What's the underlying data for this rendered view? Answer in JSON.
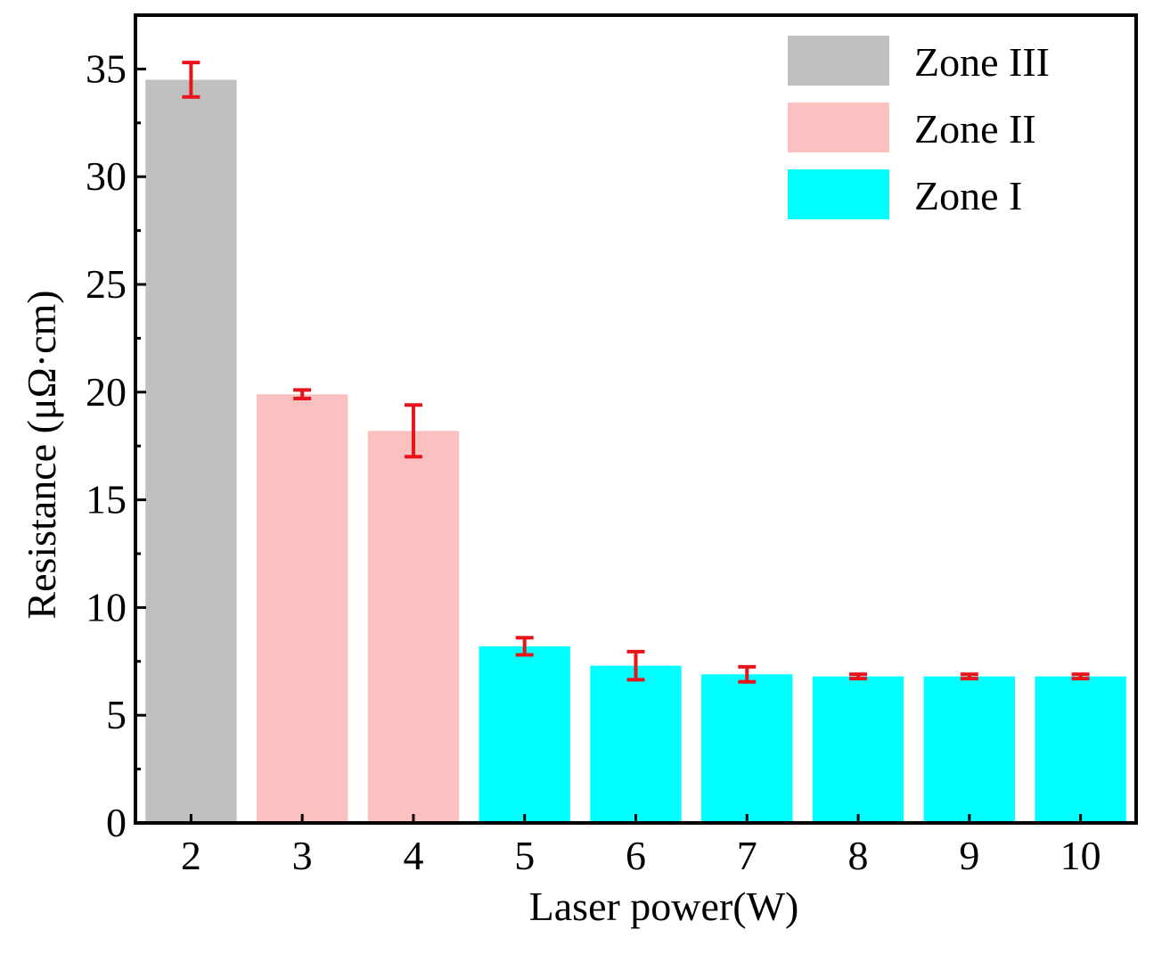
{
  "chart_data": {
    "type": "bar",
    "title": "",
    "xlabel": "Laser power(W)",
    "ylabel": "Resistance (μΩ·cm)",
    "categories": [
      "2",
      "3",
      "4",
      "5",
      "6",
      "7",
      "8",
      "9",
      "10"
    ],
    "values": [
      34.5,
      19.9,
      18.2,
      8.2,
      7.3,
      6.9,
      6.8,
      6.8,
      6.8
    ],
    "errors": [
      0.8,
      0.2,
      1.2,
      0.4,
      0.65,
      0.35,
      0.1,
      0.1,
      0.1
    ],
    "zones": [
      "Zone III",
      "Zone II",
      "Zone II",
      "Zone I",
      "Zone I",
      "Zone I",
      "Zone I",
      "Zone I",
      "Zone I"
    ],
    "ylim": [
      0,
      37.5
    ],
    "yticks": [
      0,
      5,
      10,
      15,
      20,
      25,
      30,
      35
    ],
    "legend": {
      "placement": "top-right",
      "entries": [
        {
          "label": "Zone III",
          "color": "#c0c0c0"
        },
        {
          "label": "Zone II",
          "color": "#fbc0c0"
        },
        {
          "label": "Zone I",
          "color": "#00ffff"
        }
      ]
    },
    "error_bar_color": "#e8141c",
    "grid": false
  }
}
